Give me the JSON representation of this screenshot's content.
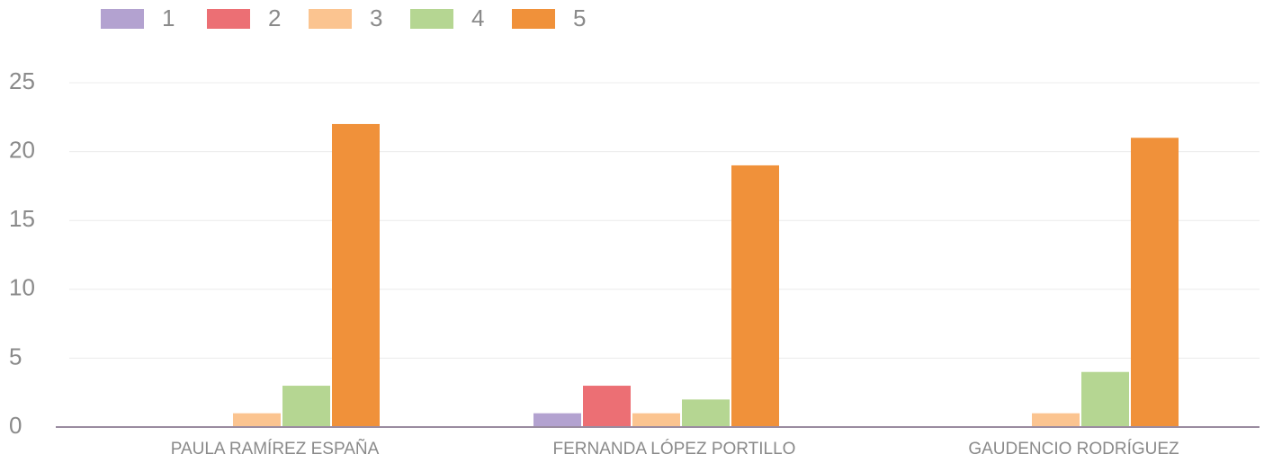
{
  "chart_data": {
    "type": "bar",
    "categories": [
      "PAULA RAMÍREZ ESPAÑA",
      "FERNANDA LÓPEZ PORTILLO",
      "GAUDENCIO RODRÍGUEZ"
    ],
    "series": [
      {
        "name": "1",
        "color": "#b3a2d0",
        "values": [
          0,
          1,
          0
        ]
      },
      {
        "name": "2",
        "color": "#ec6f74",
        "values": [
          0,
          3,
          0
        ]
      },
      {
        "name": "3",
        "color": "#fbc490",
        "values": [
          1,
          1,
          1
        ]
      },
      {
        "name": "4",
        "color": "#b5d692",
        "values": [
          3,
          2,
          4
        ]
      },
      {
        "name": "5",
        "color": "#f0913a",
        "values": [
          22,
          19,
          21
        ]
      }
    ],
    "ylim": [
      0,
      25
    ],
    "yticks": [
      0,
      5,
      10,
      15,
      20,
      25
    ],
    "grid": true,
    "legend": "top"
  }
}
